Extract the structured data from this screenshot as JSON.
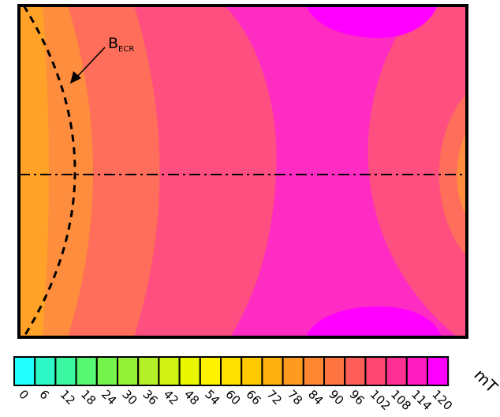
{
  "chart_data": {
    "type": "heatmap",
    "title": "",
    "xlabel": "",
    "ylabel": "",
    "colorbar": {
      "unit": "mT",
      "ticks": [
        "0",
        "6",
        "12",
        "18",
        "24",
        "30",
        "36",
        "42",
        "48",
        "54",
        "60",
        "66",
        "72",
        "78",
        "84",
        "90",
        "96",
        "102",
        "108",
        "114",
        "120"
      ],
      "colors": [
        "#22ffff",
        "#2ef7c7",
        "#3cf7a2",
        "#57f773",
        "#74f44c",
        "#94ef37",
        "#b5ef27",
        "#d0f213",
        "#e8f700",
        "#fff200",
        "#ffe000",
        "#ffca00",
        "#ffb011",
        "#ff9a20",
        "#ff8731",
        "#ff7541",
        "#ff5f58",
        "#ff4772",
        "#ff3094",
        "#ff1cc0",
        "#ff00ff"
      ]
    },
    "field_levels": [
      {
        "max": 90,
        "color": "#ffa227"
      },
      {
        "max": 96,
        "color": "#ff8d3e"
      },
      {
        "max": 102,
        "color": "#ff6e5a"
      },
      {
        "max": 108,
        "color": "#ff4f80"
      },
      {
        "max": 114,
        "color": "#ff2cc4"
      },
      {
        "max": 120,
        "color": "#ff00ff"
      }
    ],
    "ecr_field_mT": 87.5,
    "annotations": [
      {
        "text": "B",
        "subscript": "ECR"
      }
    ],
    "lines": [
      "ecr-resonance-contour",
      "axis-centerline"
    ]
  }
}
